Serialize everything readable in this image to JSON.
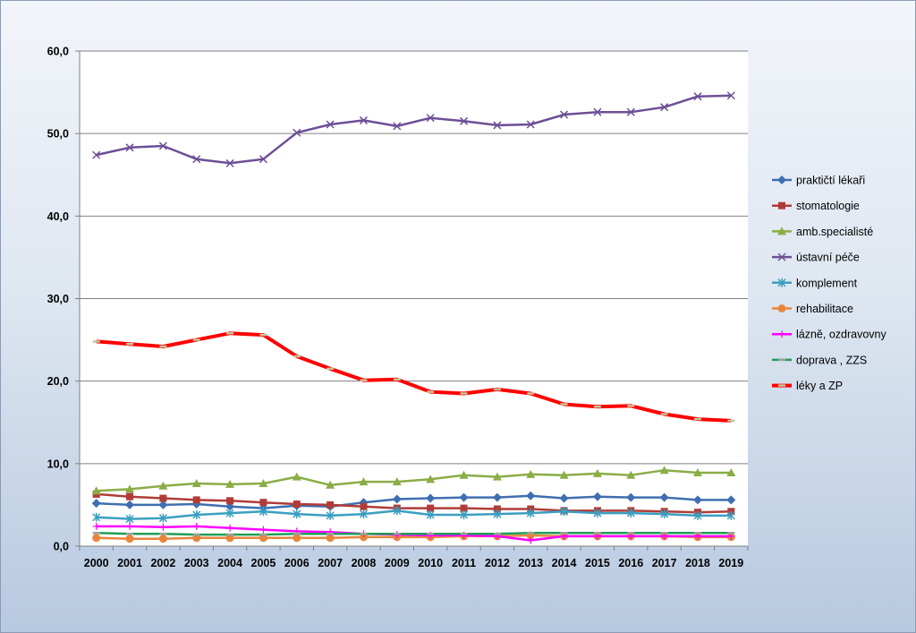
{
  "chart_data": {
    "type": "line",
    "title": "",
    "xlabel": "",
    "ylabel": "",
    "ylim": [
      0,
      60
    ],
    "yticks": [
      0,
      10,
      20,
      30,
      40,
      50,
      60
    ],
    "ytick_labels": [
      "0,0",
      "10,0",
      "20,0",
      "30,0",
      "40,0",
      "50,0",
      "60,0"
    ],
    "grid": "horizontal",
    "legend_position": "right",
    "categories": [
      "2000",
      "2001",
      "2002",
      "2003",
      "2004",
      "2005",
      "2006",
      "2007",
      "2008",
      "2009",
      "2010",
      "2011",
      "2012",
      "2013",
      "2014",
      "2015",
      "2016",
      "2017",
      "2018",
      "2019"
    ],
    "series": [
      {
        "name": "praktičtí lékaři",
        "color": "#3f6fb0",
        "marker": "diamond",
        "values": [
          5.2,
          5.0,
          5.0,
          5.1,
          4.8,
          4.6,
          4.9,
          4.8,
          5.3,
          5.7,
          5.8,
          5.9,
          5.9,
          6.1,
          5.8,
          6.0,
          5.9,
          5.9,
          5.6,
          5.6
        ]
      },
      {
        "name": "stomatologie",
        "color": "#b03c38",
        "marker": "square",
        "values": [
          6.3,
          6.0,
          5.8,
          5.6,
          5.5,
          5.3,
          5.1,
          5.0,
          4.8,
          4.6,
          4.6,
          4.6,
          4.5,
          4.5,
          4.3,
          4.3,
          4.3,
          4.2,
          4.1,
          4.2
        ]
      },
      {
        "name": "amb.specialisté",
        "color": "#8aad46",
        "marker": "triangle",
        "values": [
          6.7,
          6.9,
          7.3,
          7.6,
          7.5,
          7.6,
          8.4,
          7.4,
          7.8,
          7.8,
          8.1,
          8.6,
          8.4,
          8.7,
          8.6,
          8.8,
          8.6,
          9.2,
          8.9,
          8.9
        ]
      },
      {
        "name": "ústavní péče",
        "color": "#6d4f96",
        "marker": "x",
        "values": [
          47.4,
          48.3,
          48.5,
          46.9,
          46.4,
          46.9,
          50.1,
          51.1,
          51.6,
          50.9,
          51.9,
          51.5,
          51.0,
          51.1,
          52.3,
          52.6,
          52.6,
          53.2,
          54.5,
          54.6
        ]
      },
      {
        "name": "komplement",
        "color": "#3b9fc1",
        "marker": "star",
        "values": [
          3.5,
          3.3,
          3.4,
          3.8,
          4.0,
          4.2,
          3.9,
          3.7,
          3.9,
          4.3,
          3.8,
          3.8,
          3.9,
          4.0,
          4.2,
          4.0,
          4.0,
          3.9,
          3.7,
          3.7
        ]
      },
      {
        "name": "rehabilitace",
        "color": "#e8853c",
        "marker": "circle",
        "values": [
          1.0,
          0.9,
          0.9,
          1.0,
          1.0,
          1.0,
          1.0,
          1.0,
          1.1,
          1.1,
          1.1,
          1.2,
          1.2,
          1.3,
          1.2,
          1.2,
          1.2,
          1.2,
          1.1,
          1.1
        ]
      },
      {
        "name": "lázně, ozdravovny",
        "color": "#ff00ff",
        "marker": "plus",
        "values": [
          2.4,
          2.4,
          2.3,
          2.4,
          2.2,
          2.0,
          1.8,
          1.7,
          1.5,
          1.4,
          1.3,
          1.3,
          1.2,
          0.7,
          1.2,
          1.2,
          1.2,
          1.2,
          1.2,
          1.2
        ]
      },
      {
        "name": "doprava , ZZS",
        "color": "#1f9e58",
        "marker": "dash",
        "values": [
          1.6,
          1.5,
          1.5,
          1.4,
          1.4,
          1.4,
          1.5,
          1.5,
          1.5,
          1.5,
          1.5,
          1.5,
          1.5,
          1.6,
          1.6,
          1.6,
          1.6,
          1.6,
          1.6,
          1.6
        ]
      },
      {
        "name": "léky a ZP",
        "color": "#ff0000",
        "marker": "dash-dot",
        "values": [
          24.8,
          24.5,
          24.2,
          25.0,
          25.8,
          25.6,
          23.0,
          21.5,
          20.1,
          20.2,
          18.7,
          18.5,
          19.0,
          18.5,
          17.2,
          16.9,
          17.0,
          16.0,
          15.4,
          15.2
        ]
      }
    ]
  }
}
